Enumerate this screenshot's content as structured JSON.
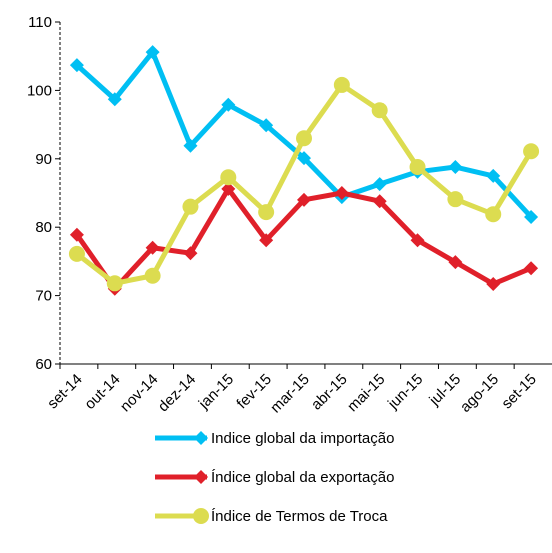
{
  "chart_data": {
    "type": "line",
    "categories": [
      "set-14",
      "out-14",
      "nov-14",
      "dez-14",
      "jan-15",
      "fev-15",
      "mar-15",
      "abr-15",
      "mai-15",
      "jun-15",
      "jul-15",
      "ago-15",
      "set-15"
    ],
    "series": [
      {
        "name": "Indice global da importação",
        "color": "#00bff3",
        "marker": "diamond",
        "values": [
          103.7,
          98.7,
          105.6,
          91.9,
          97.9,
          94.9,
          90.1,
          84.4,
          86.3,
          88.1,
          88.8,
          87.5,
          81.5
        ]
      },
      {
        "name": "Índice global da exportação",
        "color": "#e0202a",
        "marker": "diamond",
        "values": [
          78.9,
          71.0,
          77.0,
          76.2,
          85.6,
          78.1,
          84.0,
          85.0,
          83.8,
          78.1,
          74.9,
          71.7,
          74.0
        ]
      },
      {
        "name": "Índice de Termos de Troca",
        "color": "#dcdc50",
        "marker": "circle",
        "values": [
          76.1,
          71.8,
          72.9,
          83.0,
          87.3,
          82.2,
          93.0,
          100.8,
          97.1,
          88.8,
          84.1,
          81.9,
          91.1
        ]
      }
    ],
    "ylim": [
      60,
      110
    ],
    "yticks": [
      60,
      70,
      80,
      90,
      100,
      110
    ],
    "legend": "bottom"
  }
}
